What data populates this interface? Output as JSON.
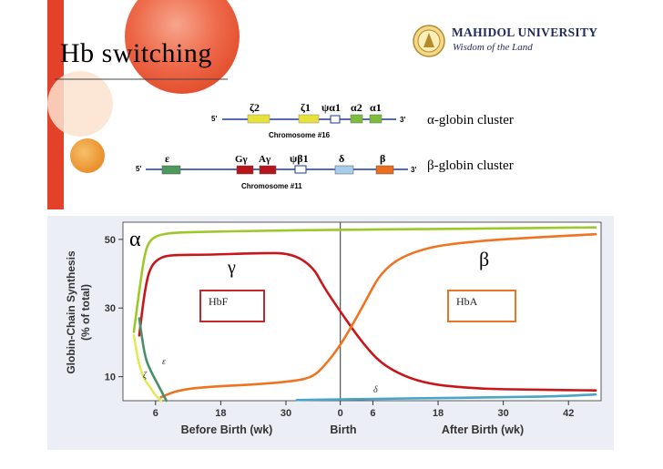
{
  "slide": {
    "title": "Hb switching",
    "university": {
      "name": "MAHIDOL UNIVERSITY",
      "motto": "Wisdom of the Land"
    }
  },
  "alpha_cluster": {
    "label": "α-globin cluster",
    "chromosome": "Chromosome #16",
    "five_prime": "5'",
    "three_prime": "3'",
    "genes": [
      "ζ2",
      "ζ1",
      "ψα1",
      "α2",
      "α1"
    ]
  },
  "beta_cluster": {
    "label": "β-globin cluster",
    "chromosome": "Chromosome #11",
    "five_prime": "5'",
    "three_prime": "3'",
    "genes": [
      "ε",
      "Gγ",
      "Aγ",
      "ψβ1",
      "δ",
      "β"
    ]
  },
  "colors": {
    "alpha_line": "#9dc82a",
    "gamma_line": "#c8161b",
    "beta_line": "#ee7421",
    "delta_line": "#4aa3c8",
    "zeta_line": "#e6e85a",
    "epsilon_line": "#4a8f6a",
    "box_red": "#c0282d",
    "box_orange": "#e8752a"
  },
  "chart_data": {
    "type": "line",
    "ylabel": "Globin-Chain Synthesis (% of total)",
    "yticks": [
      10,
      30,
      50
    ],
    "xticks": [
      "6",
      "18",
      "30",
      "0",
      "6",
      "18",
      "30",
      "42"
    ],
    "x_region_labels": [
      "Before Birth (wk)",
      "Birth",
      "After Birth (wk)"
    ],
    "x_unit": "weeks relative to birth",
    "xlim": [
      -40,
      48
    ],
    "ylim": [
      3,
      55
    ],
    "birth_marker": 0,
    "series": [
      {
        "name": "α",
        "x": [
          -38,
          -37,
          -36,
          -35,
          -33,
          -30,
          -25,
          -15,
          0,
          15,
          30,
          47
        ],
        "y": [
          23,
          35,
          46,
          50,
          51.5,
          52,
          52.2,
          52.5,
          52.8,
          53,
          53.2,
          53.5
        ]
      },
      {
        "name": "γ",
        "x": [
          -37,
          -36,
          -35,
          -33,
          -30,
          -25,
          -15,
          -9,
          -5,
          -3,
          0,
          4,
          8,
          15,
          25,
          35,
          47
        ],
        "y": [
          22,
          35,
          42,
          45,
          45.5,
          45.5,
          46,
          46,
          42,
          36,
          29,
          20,
          13,
          8,
          6.5,
          6.2,
          6
        ]
      },
      {
        "name": "β",
        "x": [
          -33,
          -30,
          -25,
          -15,
          -8,
          -5,
          -3,
          0,
          4,
          8,
          15,
          25,
          35,
          47
        ],
        "y": [
          4,
          6,
          7,
          7.8,
          8.8,
          10,
          13,
          19,
          30,
          42,
          47.5,
          49.5,
          50.5,
          51.5
        ]
      },
      {
        "name": "δ",
        "x": [
          -8,
          0,
          10,
          20,
          30,
          40,
          47
        ],
        "y": [
          3.2,
          3.4,
          3.6,
          3.8,
          4.0,
          4.3,
          4.8
        ]
      },
      {
        "name": "ζ",
        "x": [
          -38,
          -37,
          -36,
          -35,
          -34,
          -33
        ],
        "y": [
          22,
          13,
          9,
          7,
          4.5,
          3
        ]
      },
      {
        "name": "ε",
        "x": [
          -37,
          -36,
          -35,
          -34,
          -33,
          -32
        ],
        "y": [
          27,
          16,
          12,
          9,
          6,
          3
        ]
      }
    ],
    "annotations": [
      {
        "text": "α",
        "big": true
      },
      {
        "text": "γ",
        "big": true
      },
      {
        "text": "β",
        "big": true
      },
      {
        "text": "ε"
      },
      {
        "text": "ζ"
      },
      {
        "text": "δ"
      },
      {
        "text": "HbF",
        "boxed": true
      },
      {
        "text": "HbA",
        "boxed": true
      }
    ]
  }
}
